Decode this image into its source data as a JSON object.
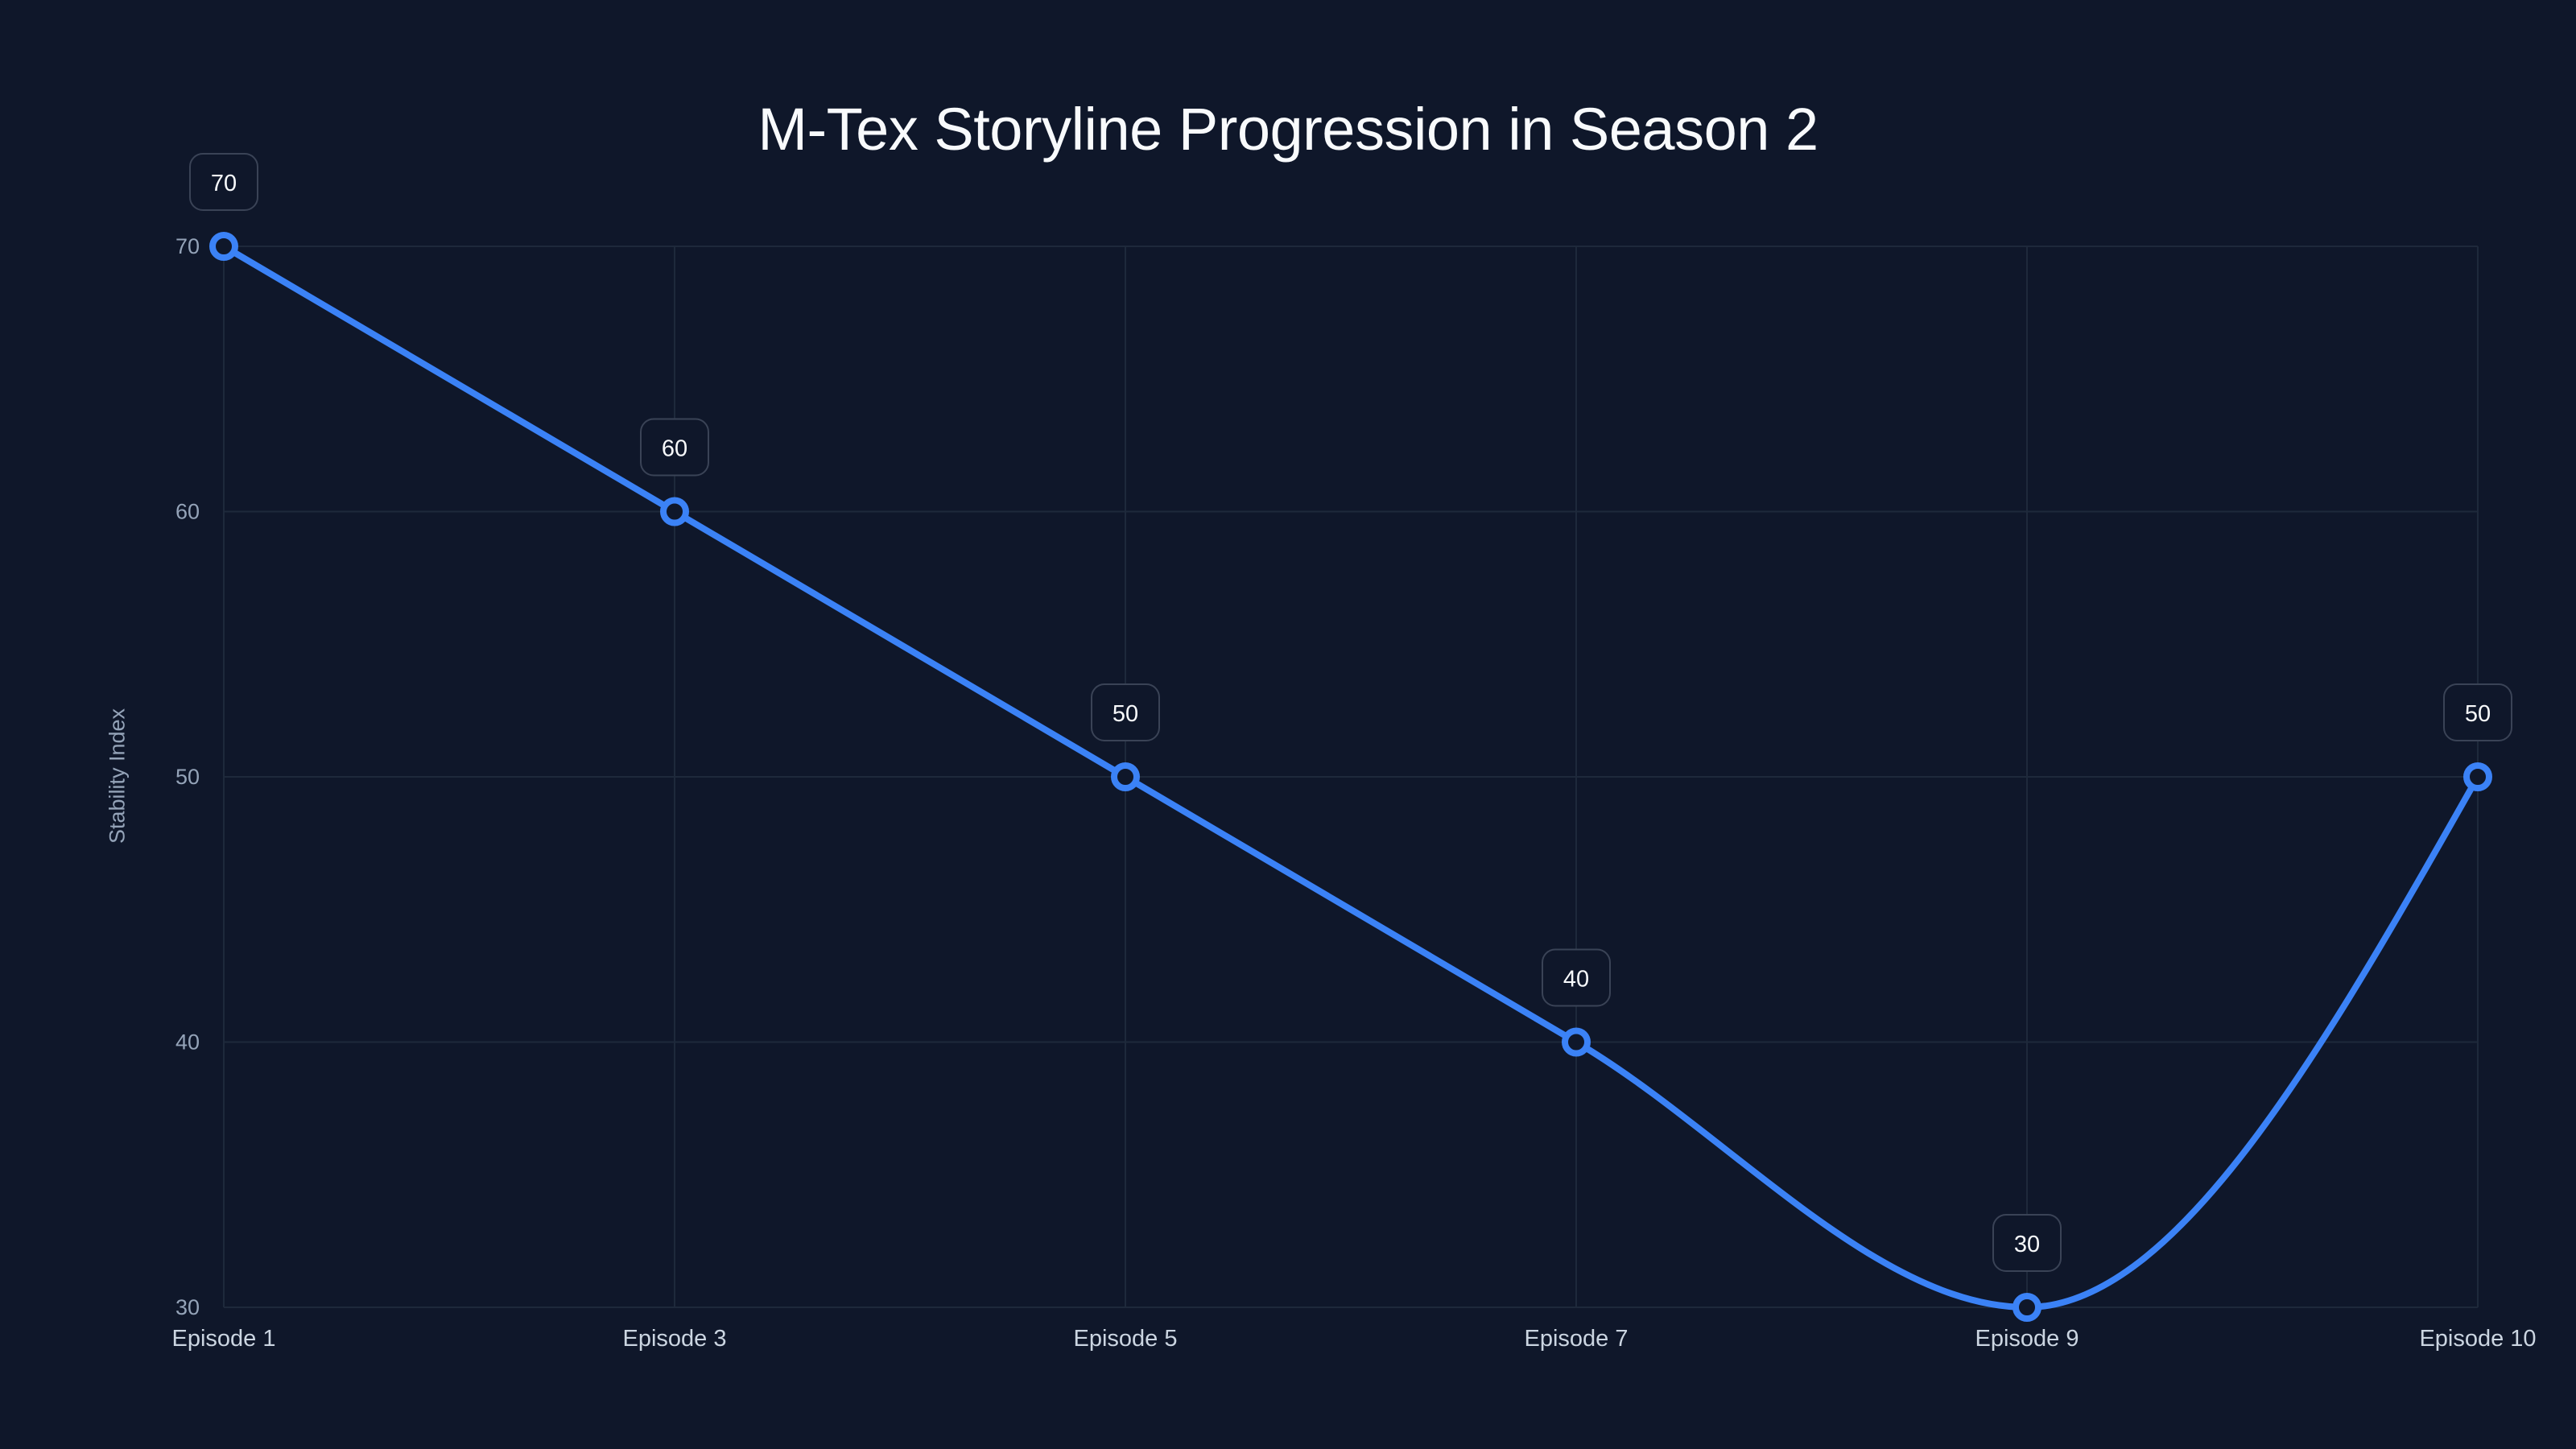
{
  "chart": {
    "title": "M-Tex Storyline Progression in Season 2",
    "ylabel": "Stability Index",
    "xlabel": ""
  },
  "colors": {
    "background": "#0f172a",
    "line": "#3b82f6",
    "marker_fill": "#0f172a",
    "grid": "#1e293b",
    "y_tick_text": "#94a3b8",
    "x_tick_text": "#cbd5e1",
    "label_box_border": "#3a4356",
    "label_text": "#f8fafc",
    "title": "#f8fafc"
  },
  "chart_data": {
    "type": "line",
    "title": "M-Tex Storyline Progression in Season 2",
    "xlabel": "",
    "ylabel": "Stability Index",
    "categories": [
      "Episode 1",
      "Episode 3",
      "Episode 5",
      "Episode 7",
      "Episode 9",
      "Episode 10"
    ],
    "series": [
      {
        "name": "Stability Index",
        "values": [
          70,
          60,
          50,
          40,
          30,
          50
        ]
      }
    ],
    "yticks": [
      30,
      40,
      50,
      60,
      70
    ],
    "ylim": [
      30,
      70
    ],
    "grid": true,
    "legend": "none",
    "data_labels": true,
    "interpolation": "monotone"
  }
}
